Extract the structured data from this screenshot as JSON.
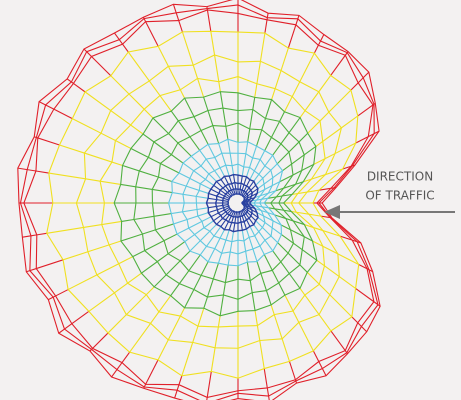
{
  "annotation": {
    "lines": [
      "DIRECTION",
      "OF TRAFFIC"
    ]
  }
}
